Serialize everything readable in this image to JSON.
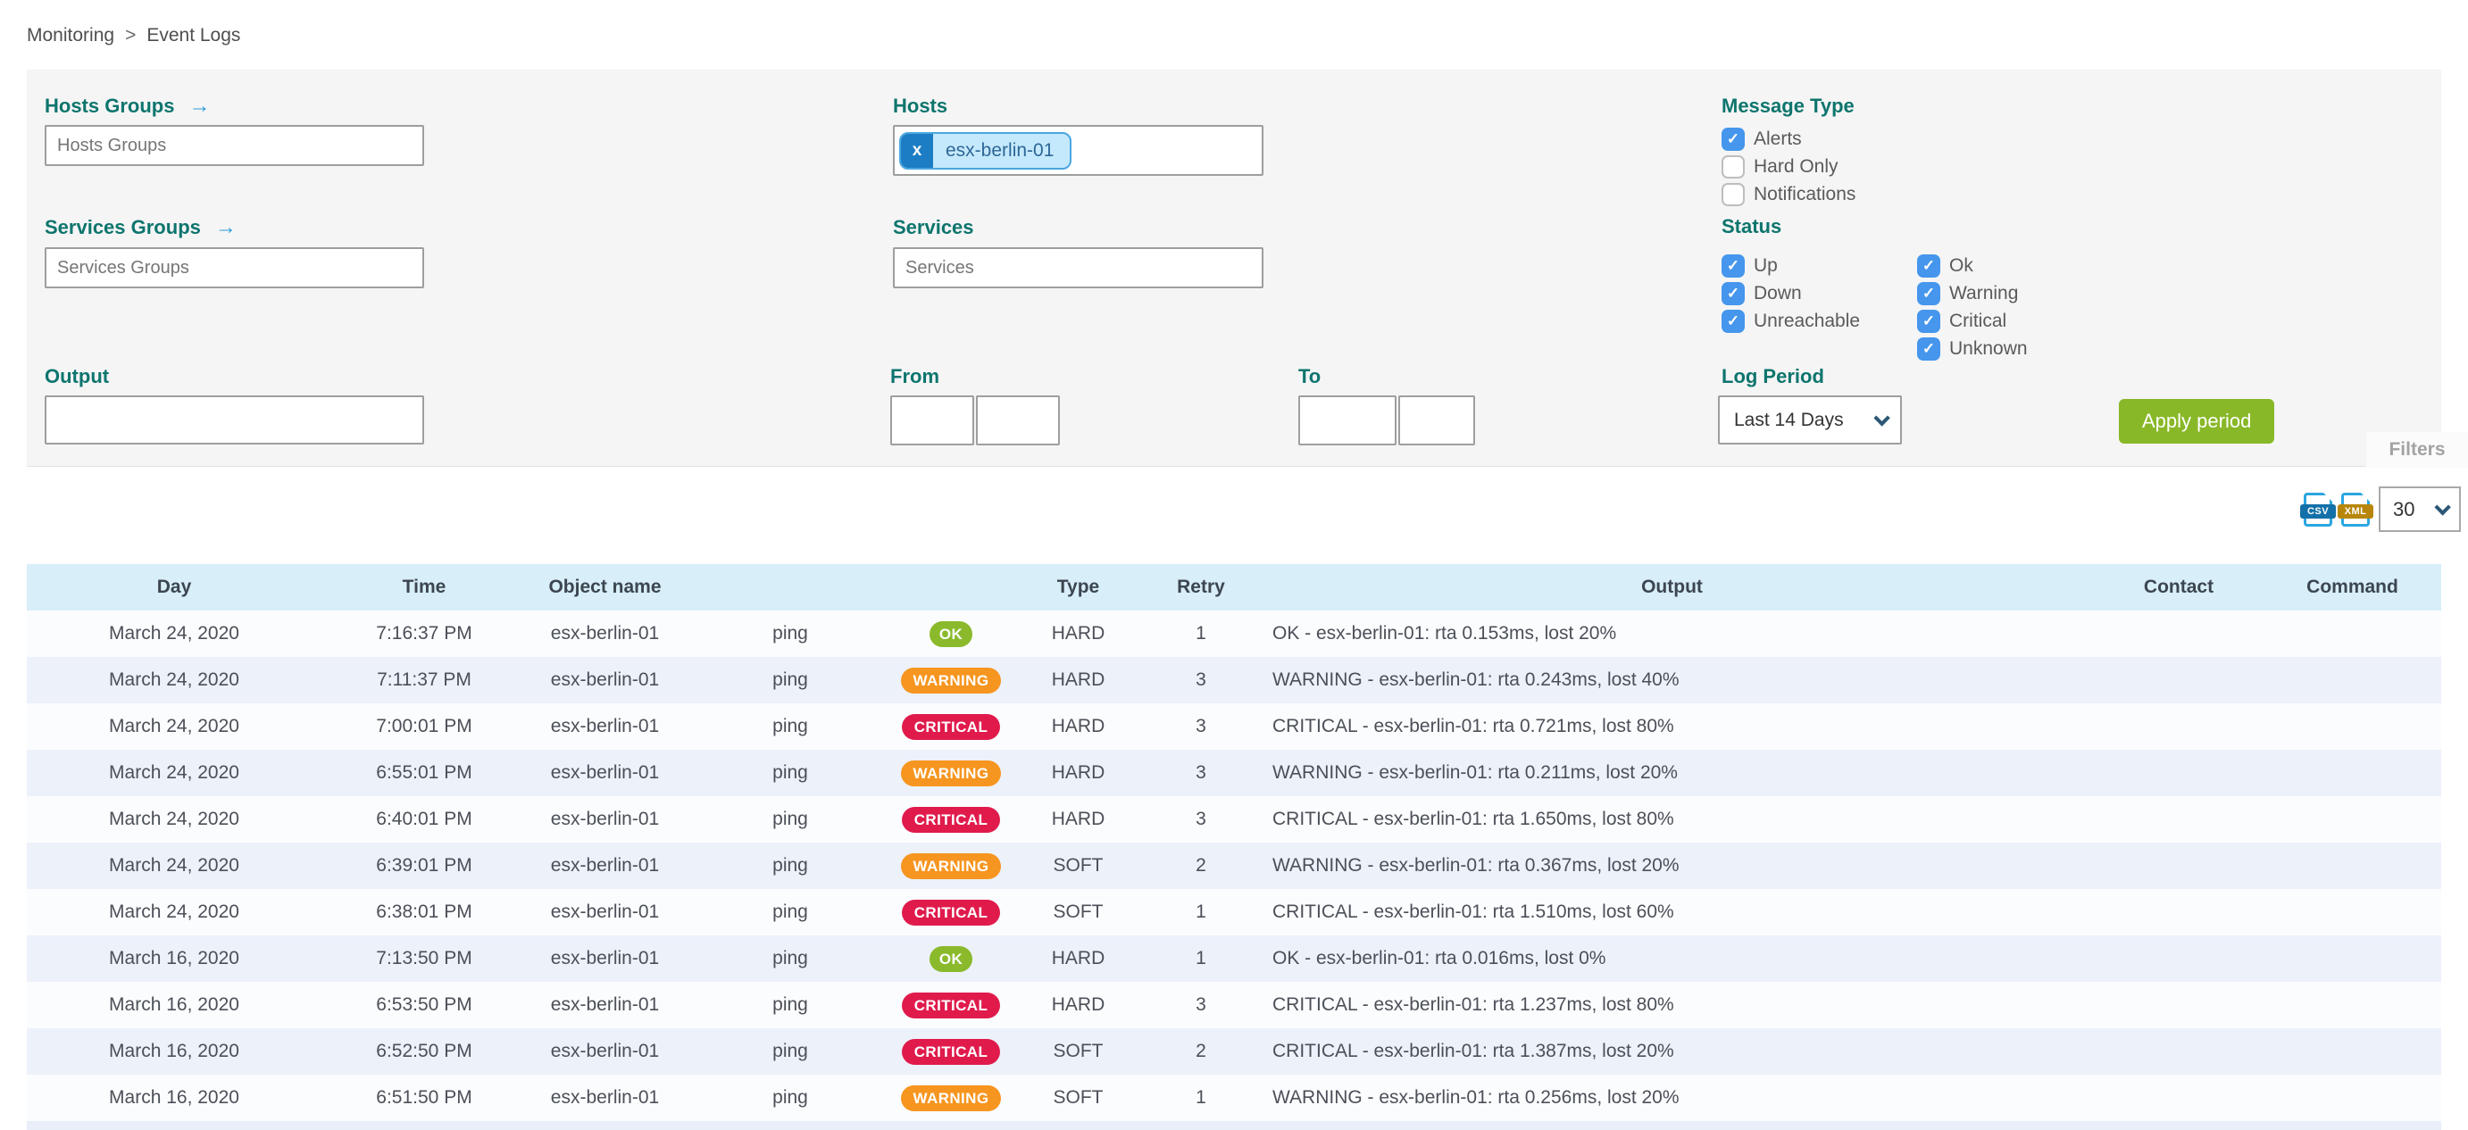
{
  "breadcrumb": {
    "items": [
      "Monitoring",
      "Event Logs"
    ],
    "separator": ">"
  },
  "filters": {
    "tab_label": "Filters",
    "hosts_groups": {
      "label": "Hosts Groups",
      "placeholder": "Hosts Groups",
      "has_arrow": true
    },
    "services_groups": {
      "label": "Services Groups",
      "placeholder": "Services Groups",
      "has_arrow": true
    },
    "hosts": {
      "label": "Hosts",
      "chips": [
        "esx-berlin-01"
      ],
      "remove_symbol": "x"
    },
    "services": {
      "label": "Services",
      "placeholder": "Services"
    },
    "output": {
      "label": "Output",
      "value": ""
    },
    "from": {
      "label": "From",
      "date_value": "",
      "time_value": ""
    },
    "to": {
      "label": "To",
      "date_value": "",
      "time_value": ""
    },
    "message_type": {
      "label": "Message Type",
      "options": [
        {
          "label": "Alerts",
          "checked": true
        },
        {
          "label": "Hard Only",
          "checked": false
        },
        {
          "label": "Notifications",
          "checked": false
        }
      ]
    },
    "status": {
      "label": "Status",
      "col1": [
        {
          "label": "Up",
          "checked": true
        },
        {
          "label": "Down",
          "checked": true
        },
        {
          "label": "Unreachable",
          "checked": true
        }
      ],
      "col2": [
        {
          "label": "Ok",
          "checked": true
        },
        {
          "label": "Warning",
          "checked": true
        },
        {
          "label": "Critical",
          "checked": true
        },
        {
          "label": "Unknown",
          "checked": true
        }
      ]
    },
    "log_period": {
      "label": "Log Period",
      "selected": "Last 14 Days"
    },
    "apply_button_label": "Apply period",
    "check_glyph": "✓"
  },
  "toolbar": {
    "export": [
      {
        "format": "CSV"
      },
      {
        "format": "XML"
      }
    ],
    "page_size": "30"
  },
  "table": {
    "columns": [
      "Day",
      "Time",
      "Object name",
      "",
      "",
      "Type",
      "Retry",
      "Output",
      "Contact",
      "Command"
    ],
    "rows": [
      {
        "day": "March 24, 2020",
        "time": "7:16:37 PM",
        "object": "esx-berlin-01",
        "service": "ping",
        "status": "OK",
        "type": "HARD",
        "retry": "1",
        "output": "OK - esx-berlin-01: rta 0.153ms, lost 20%",
        "contact": "",
        "command": ""
      },
      {
        "day": "March 24, 2020",
        "time": "7:11:37 PM",
        "object": "esx-berlin-01",
        "service": "ping",
        "status": "WARNING",
        "type": "HARD",
        "retry": "3",
        "output": "WARNING - esx-berlin-01: rta 0.243ms, lost 40%",
        "contact": "",
        "command": ""
      },
      {
        "day": "March 24, 2020",
        "time": "7:00:01 PM",
        "object": "esx-berlin-01",
        "service": "ping",
        "status": "CRITICAL",
        "type": "HARD",
        "retry": "3",
        "output": "CRITICAL - esx-berlin-01: rta 0.721ms, lost 80%",
        "contact": "",
        "command": ""
      },
      {
        "day": "March 24, 2020",
        "time": "6:55:01 PM",
        "object": "esx-berlin-01",
        "service": "ping",
        "status": "WARNING",
        "type": "HARD",
        "retry": "3",
        "output": "WARNING - esx-berlin-01: rta 0.211ms, lost 20%",
        "contact": "",
        "command": ""
      },
      {
        "day": "March 24, 2020",
        "time": "6:40:01 PM",
        "object": "esx-berlin-01",
        "service": "ping",
        "status": "CRITICAL",
        "type": "HARD",
        "retry": "3",
        "output": "CRITICAL - esx-berlin-01: rta 1.650ms, lost 80%",
        "contact": "",
        "command": ""
      },
      {
        "day": "March 24, 2020",
        "time": "6:39:01 PM",
        "object": "esx-berlin-01",
        "service": "ping",
        "status": "WARNING",
        "type": "SOFT",
        "retry": "2",
        "output": "WARNING - esx-berlin-01: rta 0.367ms, lost 20%",
        "contact": "",
        "command": ""
      },
      {
        "day": "March 24, 2020",
        "time": "6:38:01 PM",
        "object": "esx-berlin-01",
        "service": "ping",
        "status": "CRITICAL",
        "type": "SOFT",
        "retry": "1",
        "output": "CRITICAL - esx-berlin-01: rta 1.510ms, lost 60%",
        "contact": "",
        "command": ""
      },
      {
        "day": "March 16, 2020",
        "time": "7:13:50 PM",
        "object": "esx-berlin-01",
        "service": "ping",
        "status": "OK",
        "type": "HARD",
        "retry": "1",
        "output": "OK - esx-berlin-01: rta 0.016ms, lost 0%",
        "contact": "",
        "command": ""
      },
      {
        "day": "March 16, 2020",
        "time": "6:53:50 PM",
        "object": "esx-berlin-01",
        "service": "ping",
        "status": "CRITICAL",
        "type": "HARD",
        "retry": "3",
        "output": "CRITICAL - esx-berlin-01: rta 1.237ms, lost 80%",
        "contact": "",
        "command": ""
      },
      {
        "day": "March 16, 2020",
        "time": "6:52:50 PM",
        "object": "esx-berlin-01",
        "service": "ping",
        "status": "CRITICAL",
        "type": "SOFT",
        "retry": "2",
        "output": "CRITICAL - esx-berlin-01: rta 1.387ms, lost 20%",
        "contact": "",
        "command": ""
      },
      {
        "day": "March 16, 2020",
        "time": "6:51:50 PM",
        "object": "esx-berlin-01",
        "service": "ping",
        "status": "WARNING",
        "type": "SOFT",
        "retry": "1",
        "output": "WARNING - esx-berlin-01: rta 0.256ms, lost 20%",
        "contact": "",
        "command": ""
      }
    ]
  },
  "colors": {
    "teal_heading": "#0d756d",
    "checkbox_blue": "#4596ec",
    "apply_green": "#88b827",
    "ok": "#8aba2c",
    "warning": "#f6951f",
    "critical": "#e01b4c",
    "table_header_bg": "#d8eef9",
    "row_alt_bg": "#edf1fa",
    "chip_bg": "#c5e9fc",
    "chip_border": "#4aa7e0",
    "chip_remove_bg": "#1d7dc4",
    "csv_band": "#1470a8",
    "xml_band": "#b8860b",
    "arrow_blue": "#2d9cdb"
  }
}
